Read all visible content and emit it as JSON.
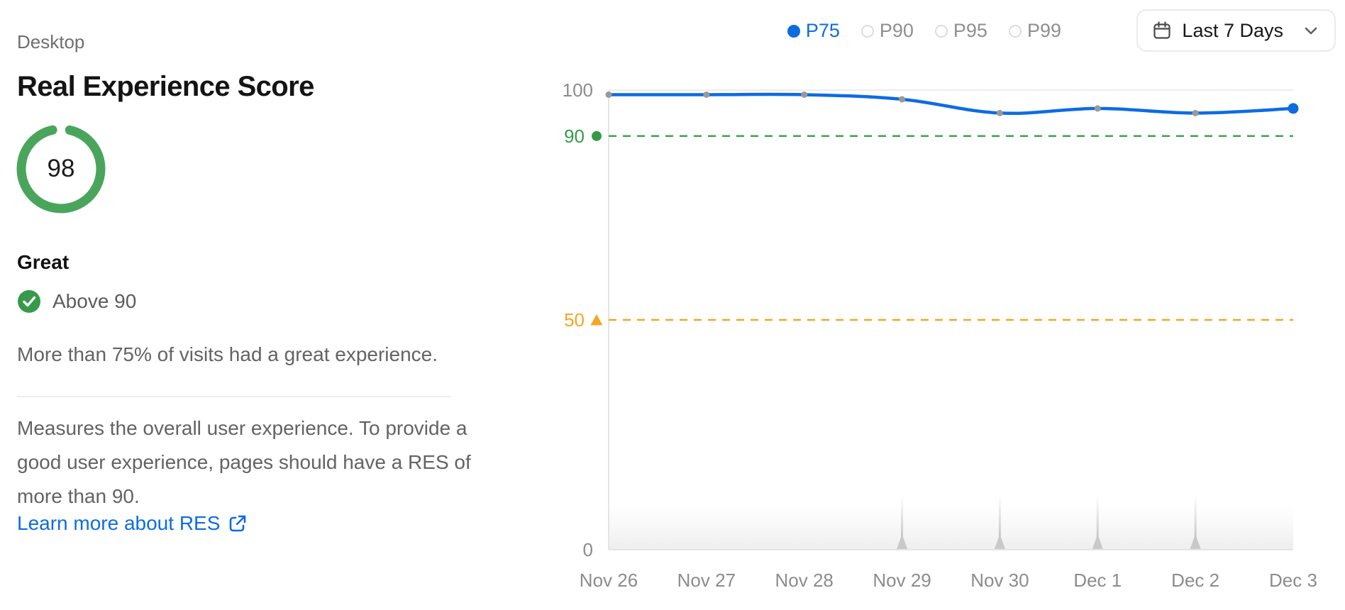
{
  "panel": {
    "device_label": "Desktop",
    "title": "Real Experience Score",
    "score": "98",
    "rating_label": "Great",
    "rating_detail": "Above 90",
    "summary": "More than 75% of visits had a great experience.",
    "description": "Measures the overall user experience. To provide a good user experience, pages should have a RES of more than 90.",
    "link_label": "Learn more about RES"
  },
  "controls": {
    "percentiles": [
      {
        "label": "P75",
        "selected": true
      },
      {
        "label": "P90",
        "selected": false
      },
      {
        "label": "P95",
        "selected": false
      },
      {
        "label": "P99",
        "selected": false
      }
    ],
    "date_range": {
      "label": "Last 7 Days"
    }
  },
  "icons": {
    "date_range": "calendar-icon",
    "date_range_expand": "chevron-down-icon",
    "rating_check": "check-circle-icon",
    "learn_more": "external-link-icon",
    "percentile_selected": "filled-dot-icon",
    "percentile_unselected": "radio-circle-icon",
    "threshold_90": "green-dot-icon",
    "threshold_50": "orange-triangle-icon"
  },
  "colors": {
    "accent_blue": "#0d6ce2",
    "gauge_green": "#4aa55c",
    "check_green": "#379a4b",
    "threshold_green": "#3fa254",
    "threshold_orange": "#f5a623",
    "axis_gray": "#8c8c8c",
    "marker_gray": "#c9c9c9"
  },
  "chart_data": {
    "type": "line",
    "x": [
      "Nov 26",
      "Nov 27",
      "Nov 28",
      "Nov 29",
      "Nov 30",
      "Dec 1",
      "Dec 2",
      "Dec 3"
    ],
    "series": [
      {
        "name": "P75",
        "color": "#0d6ce2",
        "values": [
          99,
          99,
          99,
          98,
          95,
          96,
          95,
          96
        ]
      }
    ],
    "ylim": [
      0,
      100
    ],
    "yticks": [
      {
        "value": 100,
        "label": "100",
        "color": "#8c8c8c",
        "marker": null
      },
      {
        "value": 90,
        "label": "90",
        "color": "#379a4b",
        "marker": "circle"
      },
      {
        "value": 50,
        "label": "50",
        "color": "#f5a623",
        "marker": "triangle"
      },
      {
        "value": 0,
        "label": "0",
        "color": "#8c8c8c",
        "marker": null
      }
    ],
    "thresholds": [
      {
        "value": 90,
        "color": "#3fa254",
        "style": "dashed"
      },
      {
        "value": 50,
        "color": "#f5a623",
        "style": "dashed"
      }
    ],
    "deployment_markers": [
      "Nov 29",
      "Nov 30",
      "Dec 1",
      "Dec 2"
    ],
    "grid": "top-line-only",
    "legend_position": "top-right"
  }
}
